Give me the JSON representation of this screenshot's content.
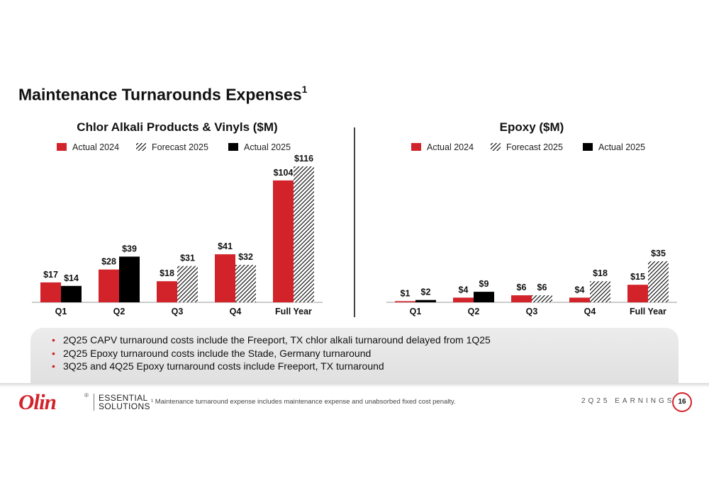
{
  "page": {
    "title": "Maintenance Turnarounds Expenses",
    "title_superscript": "1",
    "bullets": [
      "2Q25 CAPV turnaround costs include the Freeport, TX chlor alkali turnaround delayed from 1Q25",
      "2Q25 Epoxy turnaround costs include the Stade, Germany turnaround",
      "3Q25 and 4Q25 Epoxy turnaround costs include Freeport, TX turnaround"
    ],
    "footnote": "¹ Maintenance turnaround expense includes maintenance expense and unabsorbed fixed cost penalty.",
    "earnings_label": "2Q25 EARNINGS",
    "page_number": "16",
    "logo": {
      "name": "Olin",
      "registered": "®",
      "line1": "ESSENTIAL",
      "line2": "SOLUTIONS"
    }
  },
  "colors": {
    "actual_2024": "#d2232a",
    "forecast_2025": "hatch",
    "actual_2025": "#000000"
  },
  "chart_data": [
    {
      "type": "bar",
      "title": "Chlor Alkali Products & Vinyls ($M)",
      "categories": [
        "Q1",
        "Q2",
        "Q3",
        "Q4",
        "Full Year"
      ],
      "series": [
        {
          "name": "Actual 2024",
          "values": [
            17,
            28,
            18,
            41,
            104
          ],
          "labels": [
            "$17",
            "$28",
            "$18",
            "$41",
            "$104"
          ]
        },
        {
          "name": "Forecast 2025",
          "values": [
            null,
            null,
            31,
            32,
            116
          ],
          "labels": [
            null,
            null,
            "$31",
            "$32",
            "$116"
          ]
        },
        {
          "name": "Actual 2025",
          "values": [
            14,
            39,
            null,
            null,
            null
          ],
          "labels": [
            "$14",
            "$39",
            null,
            null,
            null
          ]
        }
      ],
      "ylim": [
        0,
        116
      ]
    },
    {
      "type": "bar",
      "title": "Epoxy ($M)",
      "categories": [
        "Q1",
        "Q2",
        "Q3",
        "Q4",
        "Full Year"
      ],
      "series": [
        {
          "name": "Actual 2024",
          "values": [
            1,
            4,
            6,
            4,
            15
          ],
          "labels": [
            "$1",
            "$4",
            "$6",
            "$4",
            "$15"
          ]
        },
        {
          "name": "Forecast 2025",
          "values": [
            null,
            null,
            6,
            18,
            35
          ],
          "labels": [
            null,
            null,
            "$6",
            "$18",
            "$35"
          ]
        },
        {
          "name": "Actual 2025",
          "values": [
            2,
            9,
            null,
            null,
            null
          ],
          "labels": [
            "$2",
            "$9",
            null,
            null,
            null
          ]
        }
      ],
      "ylim": [
        0,
        116
      ]
    }
  ]
}
